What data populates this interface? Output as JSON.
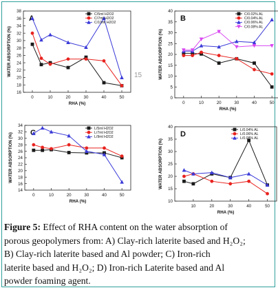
{
  "page_number": "15",
  "caption": {
    "label": "Figure 5:",
    "lines": [
      "Effect of RHA content on the water absorption of",
      "porous geopolymers from: A) Clay-rich laterite based and H₂O₂;",
      "B) Clay-rich laterite based and Al powder; C) Iron-rich",
      "laterite based and H₂O₂; D) Iron-rich Laterite based and Al",
      "powder foaming agent."
    ]
  },
  "colors": {
    "black": "#1a1a1a",
    "red": "#e8231f",
    "blue": "#3a3ad8",
    "violet": "#d847f0",
    "frame": "#2e9e9a"
  },
  "chart_data": [
    {
      "panel": "A",
      "type": "line",
      "xlabel": "RHA (%)",
      "ylabel": "WATER ABSORPTION (%)",
      "xlim": [
        -5,
        55
      ],
      "ylim": [
        16,
        38
      ],
      "xticks": [
        "0",
        "10",
        "20",
        "30",
        "40",
        "50"
      ],
      "yticks": [
        "16",
        "18",
        "20",
        "22",
        "24",
        "26",
        "28",
        "30",
        "32",
        "34",
        "36",
        "38"
      ],
      "legend_position": "top-right",
      "x": [
        0,
        5,
        10,
        20,
        30,
        40,
        50
      ],
      "series": [
        {
          "name": "C/5ml H2O2",
          "color": "#1a1a1a",
          "marker": "square",
          "values": [
            29,
            23.5,
            24,
            22.7,
            25.5,
            18.6,
            17.8
          ]
        },
        {
          "name": "C/7ml H2O2",
          "color": "#e8231f",
          "marker": "circle",
          "values": [
            32,
            25.2,
            23.6,
            25,
            25,
            24.5,
            17.8
          ]
        },
        {
          "name": "C/10ml H2O2",
          "color": "#3a3ad8",
          "marker": "triangle",
          "values": [
            36,
            30.2,
            31.6,
            29.5,
            28.2,
            36,
            20
          ]
        }
      ]
    },
    {
      "panel": "B",
      "type": "line",
      "xlabel": "RHA (%)",
      "ylabel": "WATER ABSORPTION (%)",
      "xlim": [
        -5,
        55
      ],
      "ylim": [
        0,
        40
      ],
      "xticks": [
        "0",
        "10",
        "20",
        "30",
        "40",
        "50"
      ],
      "yticks": [
        "0",
        "5",
        "10",
        "15",
        "20",
        "25",
        "30",
        "35",
        "40"
      ],
      "legend_position": "top-right",
      "x": [
        0,
        5,
        10,
        20,
        30,
        40,
        50
      ],
      "series": [
        {
          "name": "C/0.02% AL",
          "color": "#1a1a1a",
          "marker": "square",
          "values": [
            20.5,
            20.5,
            20.2,
            16,
            18,
            16,
            5
          ]
        },
        {
          "name": "C/0.04% AL",
          "color": "#e8231f",
          "marker": "circle",
          "values": [
            19.5,
            19.5,
            21,
            19.5,
            18,
            13,
            11
          ]
        },
        {
          "name": "C/0.06% AL",
          "color": "#3a3ad8",
          "marker": "triangle",
          "values": [
            21.5,
            21.5,
            24,
            23.5,
            26,
            25.5,
            36
          ]
        },
        {
          "name": "C/0.08% AL",
          "color": "#d847f0",
          "marker": "triangle-down",
          "values": [
            22,
            22,
            27,
            30.5,
            23.5,
            24,
            24
          ]
        }
      ]
    },
    {
      "panel": "C",
      "type": "line",
      "xlabel": "RHA (%)",
      "ylabel": "WATER ABSORPTION (%)",
      "xlim": [
        -5,
        55
      ],
      "ylim": [
        14,
        34
      ],
      "xticks": [
        "0",
        "10",
        "20",
        "30",
        "40",
        "50"
      ],
      "yticks": [
        "14",
        "16",
        "18",
        "20",
        "22",
        "24",
        "26",
        "28",
        "30",
        "32",
        "34"
      ],
      "legend_position": "top-right",
      "x": [
        0,
        5,
        10,
        20,
        30,
        40,
        50
      ],
      "series": [
        {
          "name": "L/5ml H2O2",
          "color": "#1a1a1a",
          "marker": "square",
          "values": [
            26.3,
            26.3,
            26.5,
            25.6,
            25.5,
            25.5,
            24
          ]
        },
        {
          "name": "L/7ml H2O2",
          "color": "#e8231f",
          "marker": "circle",
          "values": [
            28,
            27.2,
            26.8,
            28,
            27,
            27,
            24.5
          ]
        },
        {
          "name": "L/9ml H2O2",
          "color": "#3a3ad8",
          "marker": "triangle",
          "values": [
            31.5,
            33.2,
            32,
            30.8,
            26,
            25,
            16.5
          ]
        }
      ]
    },
    {
      "panel": "D",
      "type": "line",
      "xlabel": "RHA (%)",
      "ylabel": "WATER ABSORPTION (%)",
      "xlim": [
        0,
        55
      ],
      "ylim": [
        10,
        40
      ],
      "xticks": [
        "10",
        "20",
        "30",
        "40",
        "50"
      ],
      "yticks": [
        "10",
        "15",
        "20",
        "25",
        "30",
        "35",
        "40"
      ],
      "legend_position": "top-right",
      "x": [
        5,
        10,
        20,
        30,
        40,
        50
      ],
      "series": [
        {
          "name": "L/0.04% AL",
          "color": "#1a1a1a",
          "marker": "square",
          "values": [
            18,
            17,
            21,
            19.5,
            34.5,
            16.5
          ]
        },
        {
          "name": "L/0.06% AL",
          "color": "#e8231f",
          "marker": "circle",
          "values": [
            20,
            21,
            18,
            17,
            18,
            13
          ]
        },
        {
          "name": "L/0.08% AL",
          "color": "#3a3ad8",
          "marker": "triangle",
          "values": [
            22.5,
            21,
            21.5,
            19.5,
            21,
            16.5
          ]
        }
      ]
    }
  ]
}
